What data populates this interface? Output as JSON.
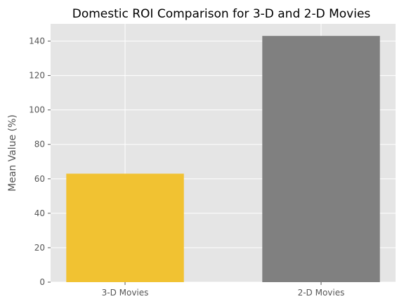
{
  "chart_data": {
    "type": "bar",
    "title": "Domestic ROI Comparison for 3-D and 2-D Movies",
    "xlabel": "",
    "ylabel": "Mean Value (%)",
    "categories": [
      "3-D Movies",
      "2-D Movies"
    ],
    "values": [
      63,
      143
    ],
    "colors": [
      "#f1c232",
      "#808080"
    ],
    "ylim": [
      0,
      150
    ],
    "yticks": [
      0,
      20,
      40,
      60,
      80,
      100,
      120,
      140
    ],
    "grid": true,
    "background": "#e5e5e5",
    "grid_color": "#ffffff"
  }
}
